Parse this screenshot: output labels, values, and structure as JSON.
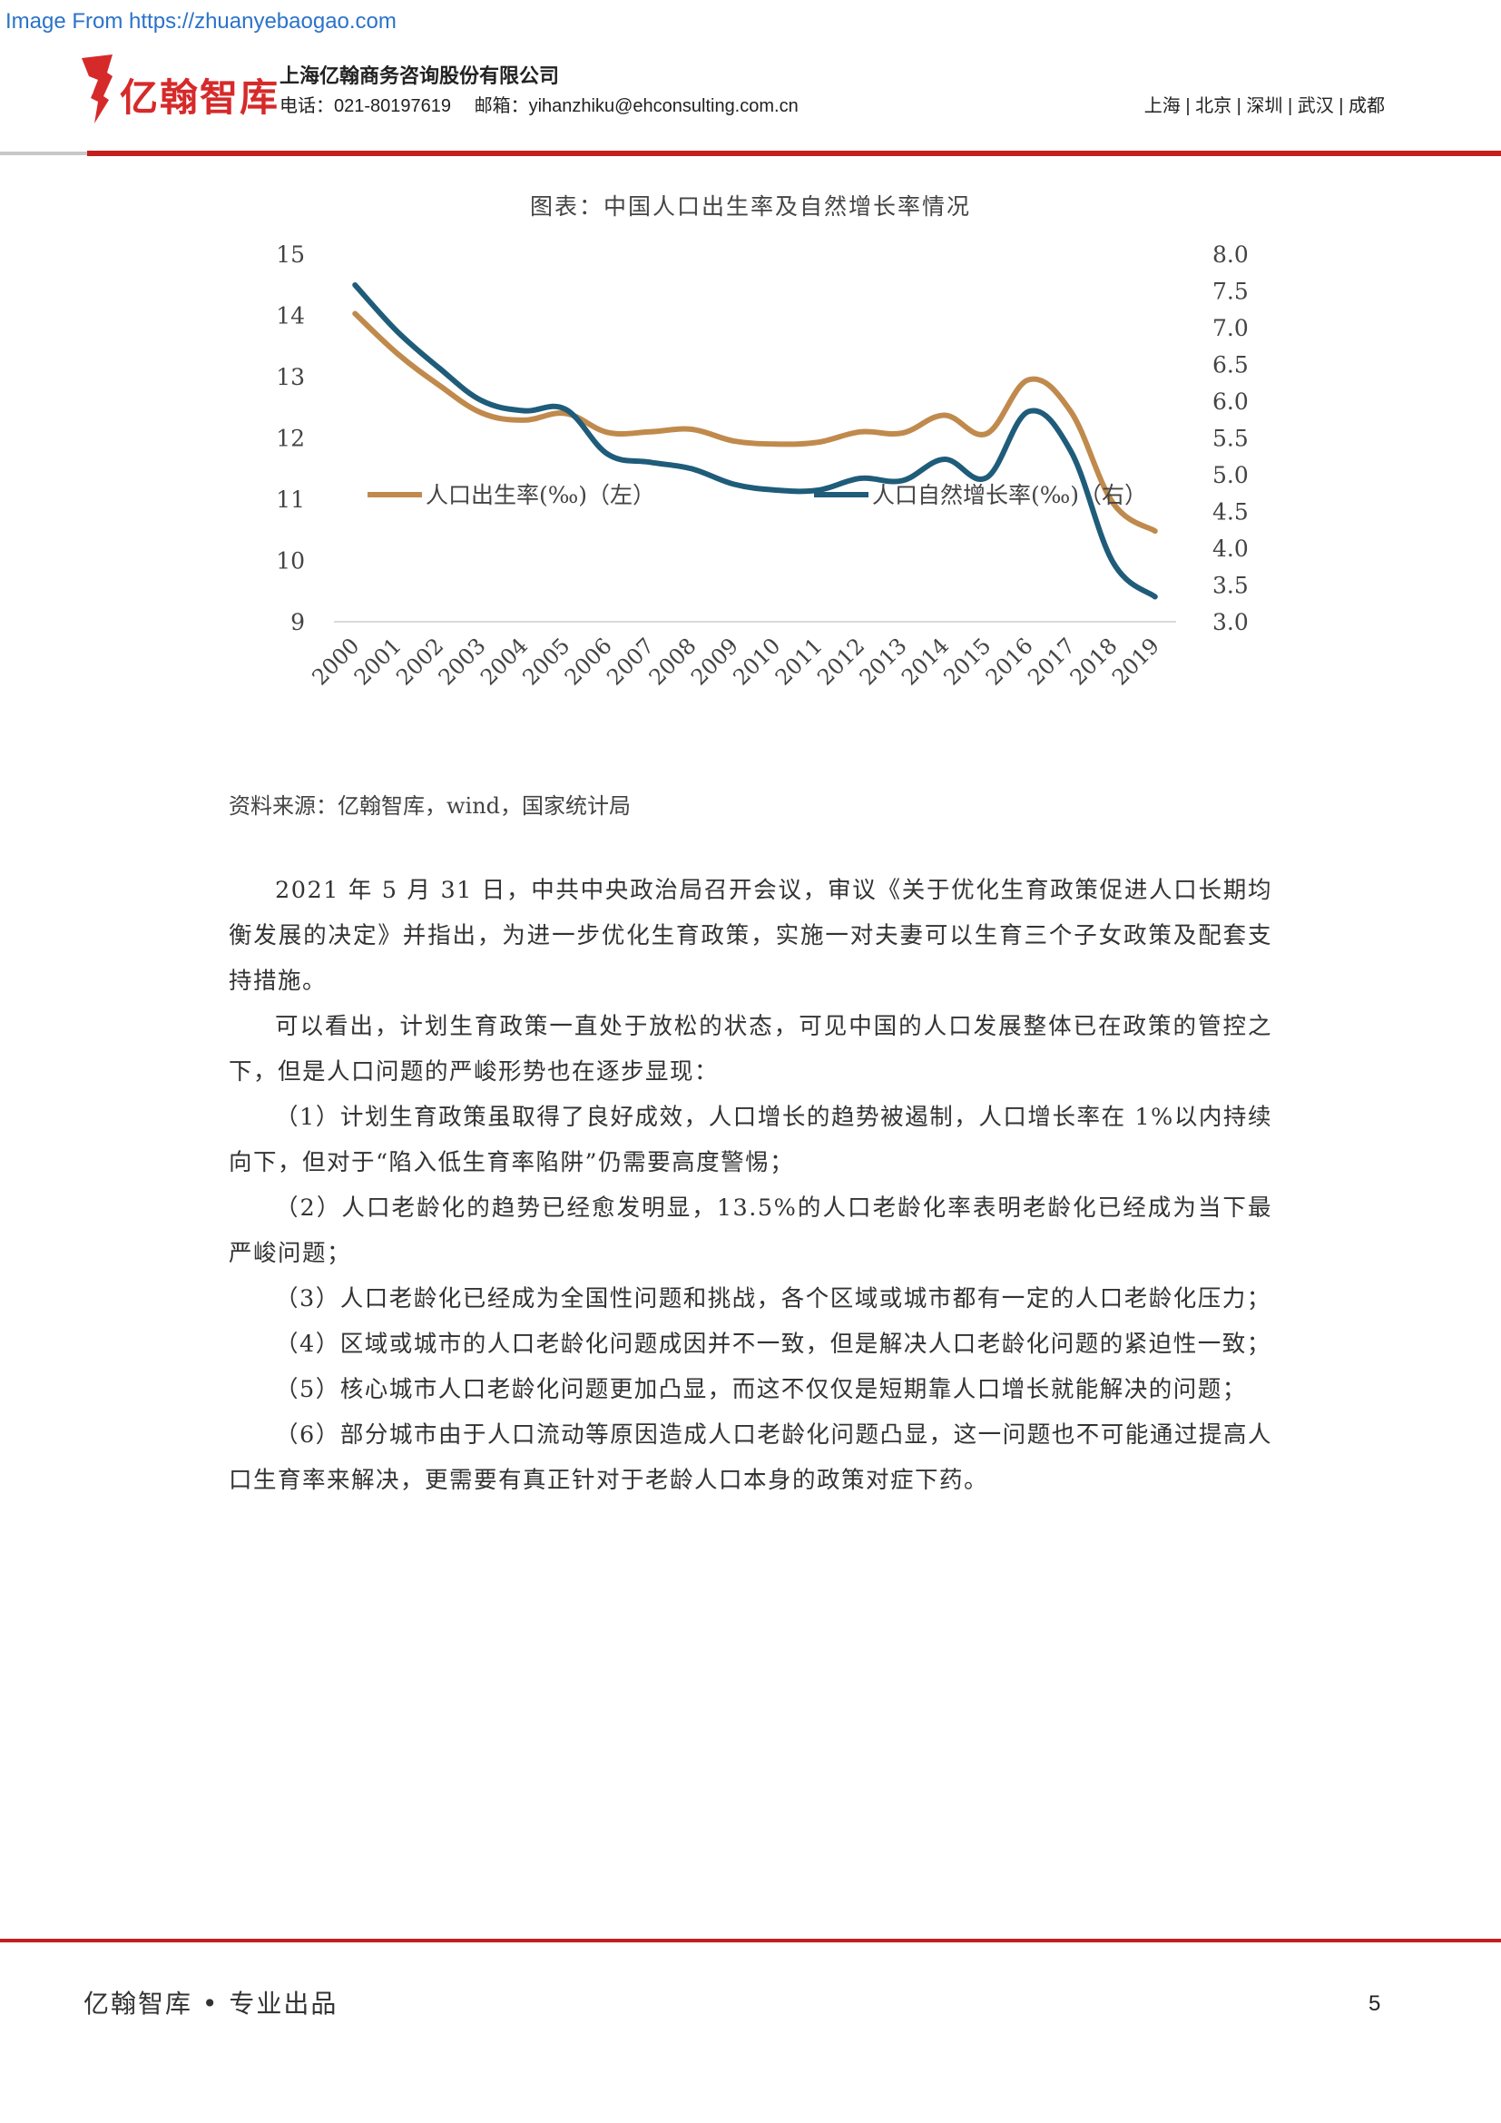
{
  "watermark": "Image From https://zhuanyebaogao.com",
  "header": {
    "logo_text": "亿翰智库",
    "company_name": "上海亿翰商务咨询股份有限公司",
    "phone": "电话：021-80197619",
    "email": "邮箱：yihanzhiku@ehconsulting.com.cn",
    "cities": "上海 | 北京 | 深圳 | 武汉 | 成都",
    "colors": {
      "brand_red": "#c41f1f"
    }
  },
  "chart_title": "图表：中国人口出生率及自然增长率情况",
  "chart_data": {
    "type": "line",
    "title": "图表：中国人口出生率及自然增长率情况",
    "categories": [
      "2000",
      "2001",
      "2002",
      "2003",
      "2004",
      "2005",
      "2006",
      "2007",
      "2008",
      "2009",
      "2010",
      "2011",
      "2012",
      "2013",
      "2014",
      "2015",
      "2016",
      "2017",
      "2018",
      "2019"
    ],
    "series": [
      {
        "name": "人口出生率(‰)（左）",
        "axis": "left",
        "color": "#c08a4d",
        "values": [
          14.03,
          13.38,
          12.86,
          12.41,
          12.29,
          12.4,
          12.09,
          12.1,
          12.14,
          11.95,
          11.9,
          11.93,
          12.1,
          12.08,
          12.37,
          12.07,
          12.95,
          12.43,
          10.94,
          10.48
        ]
      },
      {
        "name": "人口自然增长率(‰)（右）",
        "axis": "right",
        "color": "#1f5c7a",
        "values": [
          7.58,
          6.95,
          6.45,
          6.01,
          5.87,
          5.89,
          5.28,
          5.17,
          5.08,
          4.87,
          4.79,
          4.79,
          4.95,
          4.92,
          5.21,
          4.96,
          5.86,
          5.32,
          3.81,
          3.34
        ]
      }
    ],
    "left_axis": {
      "ylim": [
        9,
        15
      ],
      "ticks": [
        "15",
        "14",
        "13",
        "12",
        "11",
        "10",
        "9"
      ]
    },
    "right_axis": {
      "ylim": [
        3.0,
        8.0
      ],
      "ticks": [
        "8.0",
        "7.5",
        "7.0",
        "6.5",
        "6.0",
        "5.5",
        "5.0",
        "4.5",
        "4.0",
        "3.5",
        "3.0"
      ]
    },
    "legend_position": "bottom",
    "grid": false
  },
  "chart_source": "资料来源：亿翰智库，wind，国家统计局",
  "paragraphs": [
    "2021 年 5 月 31 日，中共中央政治局召开会议，审议《关于优化生育政策促进人口长期均衡发展的决定》并指出，为进一步优化生育政策，实施一对夫妻可以生育三个子女政策及配套支持措施。",
    "可以看出，计划生育政策一直处于放松的状态，可见中国的人口发展整体已在政策的管控之下，但是人口问题的严峻形势也在逐步显现：",
    "（1）计划生育政策虽取得了良好成效，人口增长的趋势被遏制，人口增长率在 1%以内持续向下，但对于“陷入低生育率陷阱”仍需要高度警惕；",
    "（2）人口老龄化的趋势已经愈发明显，13.5%的人口老龄化率表明老龄化已经成为当下最严峻问题；",
    "（3）人口老龄化已经成为全国性问题和挑战，各个区域或城市都有一定的人口老龄化压力；",
    "（4）区域或城市的人口老龄化问题成因并不一致，但是解决人口老龄化问题的紧迫性一致；",
    "（5）核心城市人口老龄化问题更加凸显，而这不仅仅是短期靠人口增长就能解决的问题；",
    "（6）部分城市由于人口流动等原因造成人口老龄化问题凸显，这一问题也不可能通过提高人口生育率来解决，更需要有真正针对于老龄人口本身的政策对症下药。"
  ],
  "footer": {
    "left": "亿翰智库 • 专业出品",
    "page_number": "5"
  }
}
